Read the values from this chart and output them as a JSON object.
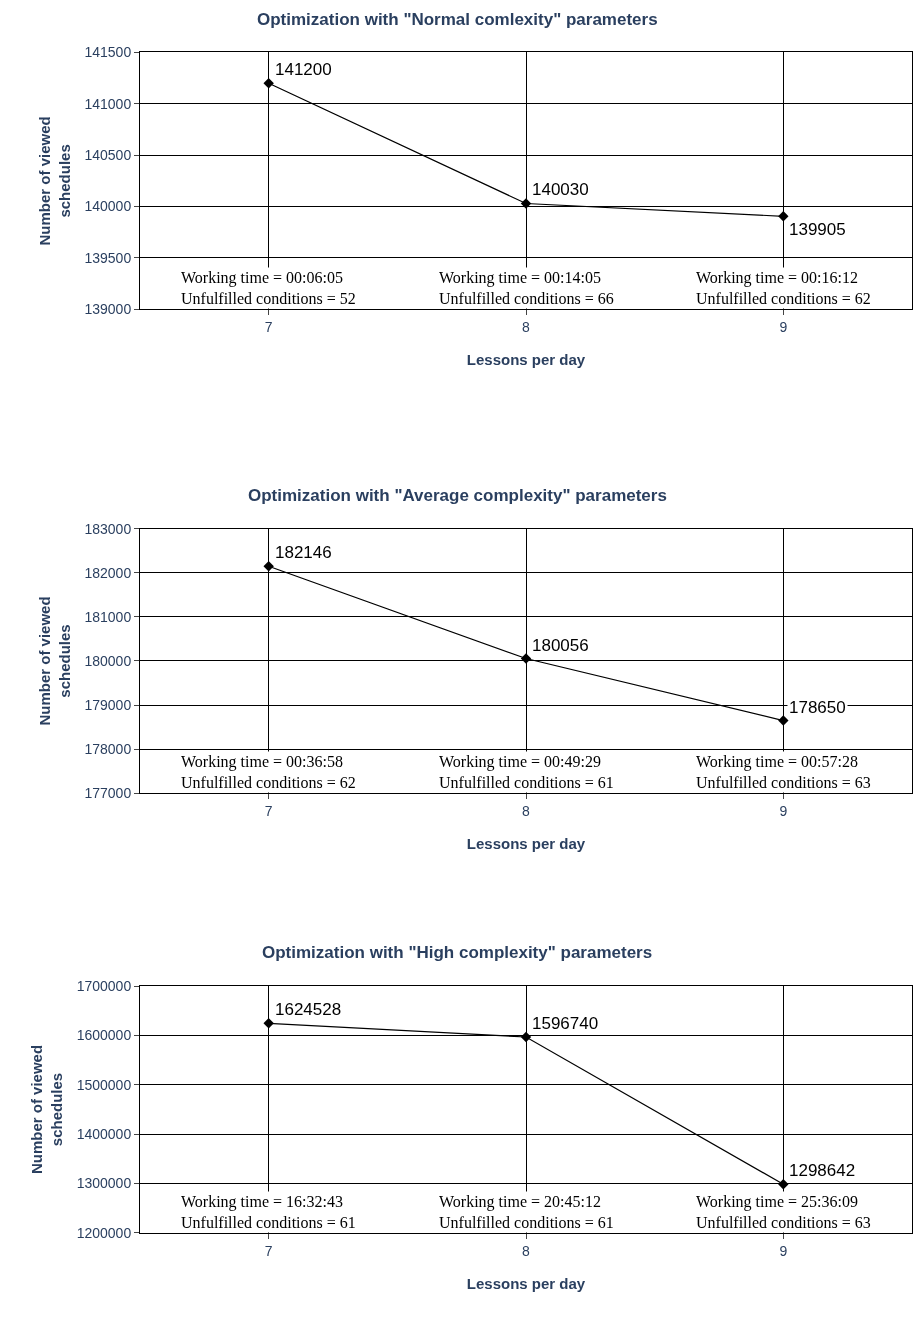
{
  "chart_data": [
    {
      "type": "line",
      "title": "Optimization with \"Normal comlexity\" parameters",
      "xlabel": "Lessons per day",
      "ylabel": "Number of viewed\nschedules",
      "categories": [
        "7",
        "8",
        "9"
      ],
      "ylim": [
        139000,
        141500
      ],
      "yticks": [
        139000,
        139500,
        140000,
        140500,
        141000,
        141500
      ],
      "grid": true,
      "marker": "diamond",
      "data_labels": true,
      "series": [
        {
          "color": "#000000",
          "values": [
            141200,
            140030,
            139905
          ]
        }
      ],
      "annotations": [
        "Working time = 00:06:05\nUnfulfilled conditions = 52",
        "Working time = 00:14:05\nUnfulfilled conditions = 66",
        "Working time = 00:16:12\nUnfulfilled conditions = 62"
      ]
    },
    {
      "type": "line",
      "title": "Optimization with \"Average complexity\" parameters",
      "xlabel": "Lessons per day",
      "ylabel": "Number of viewed\nschedules",
      "categories": [
        "7",
        "8",
        "9"
      ],
      "ylim": [
        177000,
        183000
      ],
      "yticks": [
        177000,
        178000,
        179000,
        180000,
        181000,
        182000,
        183000
      ],
      "grid": true,
      "marker": "diamond",
      "data_labels": true,
      "series": [
        {
          "color": "#000000",
          "values": [
            182146,
            180056,
            178650
          ]
        }
      ],
      "annotations": [
        "Working time = 00:36:58\nUnfulfilled conditions = 62",
        "Working time = 00:49:29\nUnfulfilled conditions = 61",
        "Working time = 00:57:28\nUnfulfilled conditions = 63"
      ]
    },
    {
      "type": "line",
      "title": "Optimization with \"High complexity\" parameters",
      "xlabel": "Lessons per day",
      "ylabel": "Number of viewed\nschedules",
      "categories": [
        "7",
        "8",
        "9"
      ],
      "ylim": [
        1200000,
        1700000
      ],
      "yticks": [
        1200000,
        1300000,
        1400000,
        1500000,
        1600000,
        1700000
      ],
      "grid": true,
      "marker": "diamond",
      "data_labels": true,
      "series": [
        {
          "color": "#000000",
          "values": [
            1624528,
            1596740,
            1298642
          ]
        }
      ],
      "annotations": [
        "Working time = 16:32:43\nUnfulfilled conditions = 61",
        "Working time = 20:45:12\nUnfulfilled conditions = 61",
        "Working time = 25:36:09\nUnfulfilled conditions = 63"
      ]
    }
  ]
}
